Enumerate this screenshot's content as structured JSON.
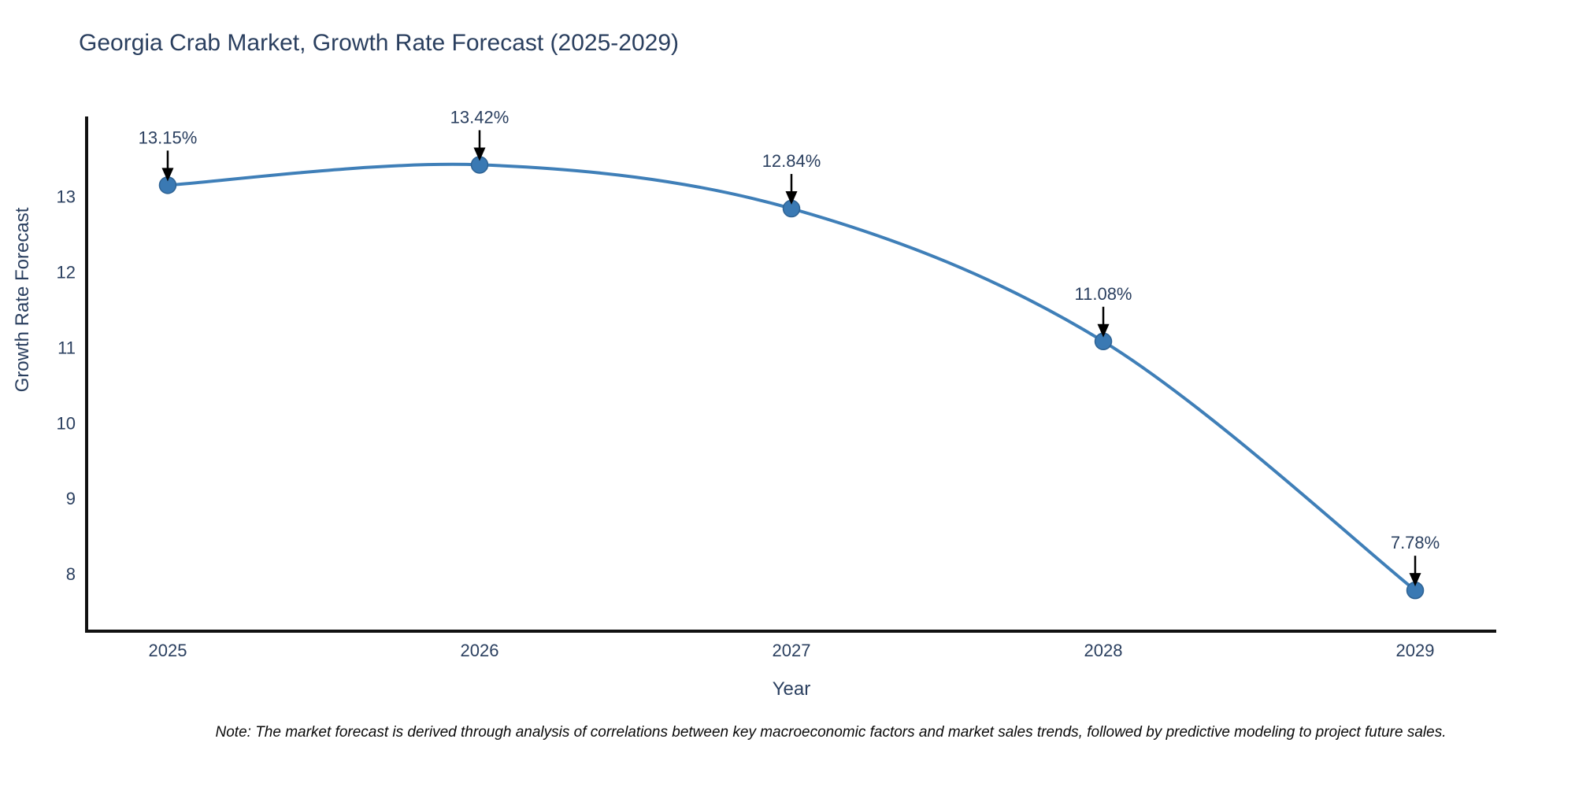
{
  "note": "Note: The market forecast is derived through analysis of correlations between key macroeconomic factors and market sales trends, followed by predictive modeling to project future sales.",
  "chart_data": {
    "type": "line",
    "title": "Georgia Crab Market, Growth Rate Forecast (2025-2029)",
    "xlabel": "Year",
    "ylabel": "Growth Rate Forecast",
    "x": [
      2025,
      2026,
      2027,
      2028,
      2029
    ],
    "series": [
      {
        "name": "Growth Rate Forecast",
        "values": [
          13.15,
          13.42,
          12.84,
          11.08,
          7.78
        ],
        "point_labels": [
          "13.15%",
          "13.42%",
          "12.84%",
          "11.08%",
          "7.78%"
        ]
      }
    ],
    "xticks": [
      2025,
      2026,
      2027,
      2028,
      2029
    ],
    "yticks": [
      8,
      9,
      10,
      11,
      12,
      13
    ],
    "xlim": [
      2024.74,
      2029.26
    ],
    "ylim": [
      7.26,
      14.04
    ],
    "grid": false,
    "legend": false,
    "line_shape": "spline",
    "colors": {
      "line": "#3f7fb8",
      "marker_fill": "#3a79b3",
      "marker_stroke": "#2e6293",
      "axis_line": "#111111",
      "tick_label": "#2a3f5f",
      "annotation_text": "#2a3f5f",
      "annotation_arrow": "#000000",
      "title": "#2a3f5f"
    }
  }
}
